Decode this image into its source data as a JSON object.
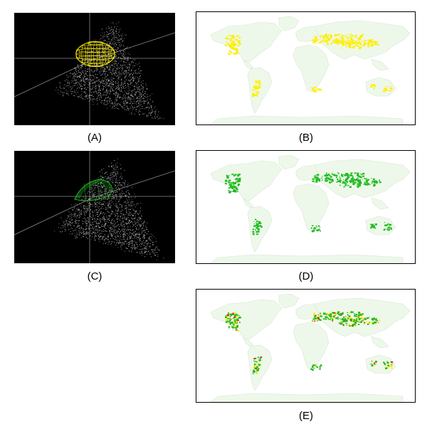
{
  "colors": {
    "land": "#eef8ea",
    "land_edge": "#d6e7d1",
    "yellow": "#ffee00",
    "green": "#22bb22",
    "red": "#ee2222",
    "grid": "#8a8a8a",
    "points": "#dddddd"
  },
  "panels": {
    "a": {
      "label": "(A)",
      "ellipsoid_color": "yellow"
    },
    "b": {
      "label": "(B)",
      "region_color": "yellow"
    },
    "c": {
      "label": "(C)",
      "ellipsoid_color": "green"
    },
    "d": {
      "label": "(D)",
      "region_color": "green"
    },
    "e": {
      "label": "(E)",
      "region_colors": [
        "green",
        "yellow",
        "red"
      ]
    }
  }
}
